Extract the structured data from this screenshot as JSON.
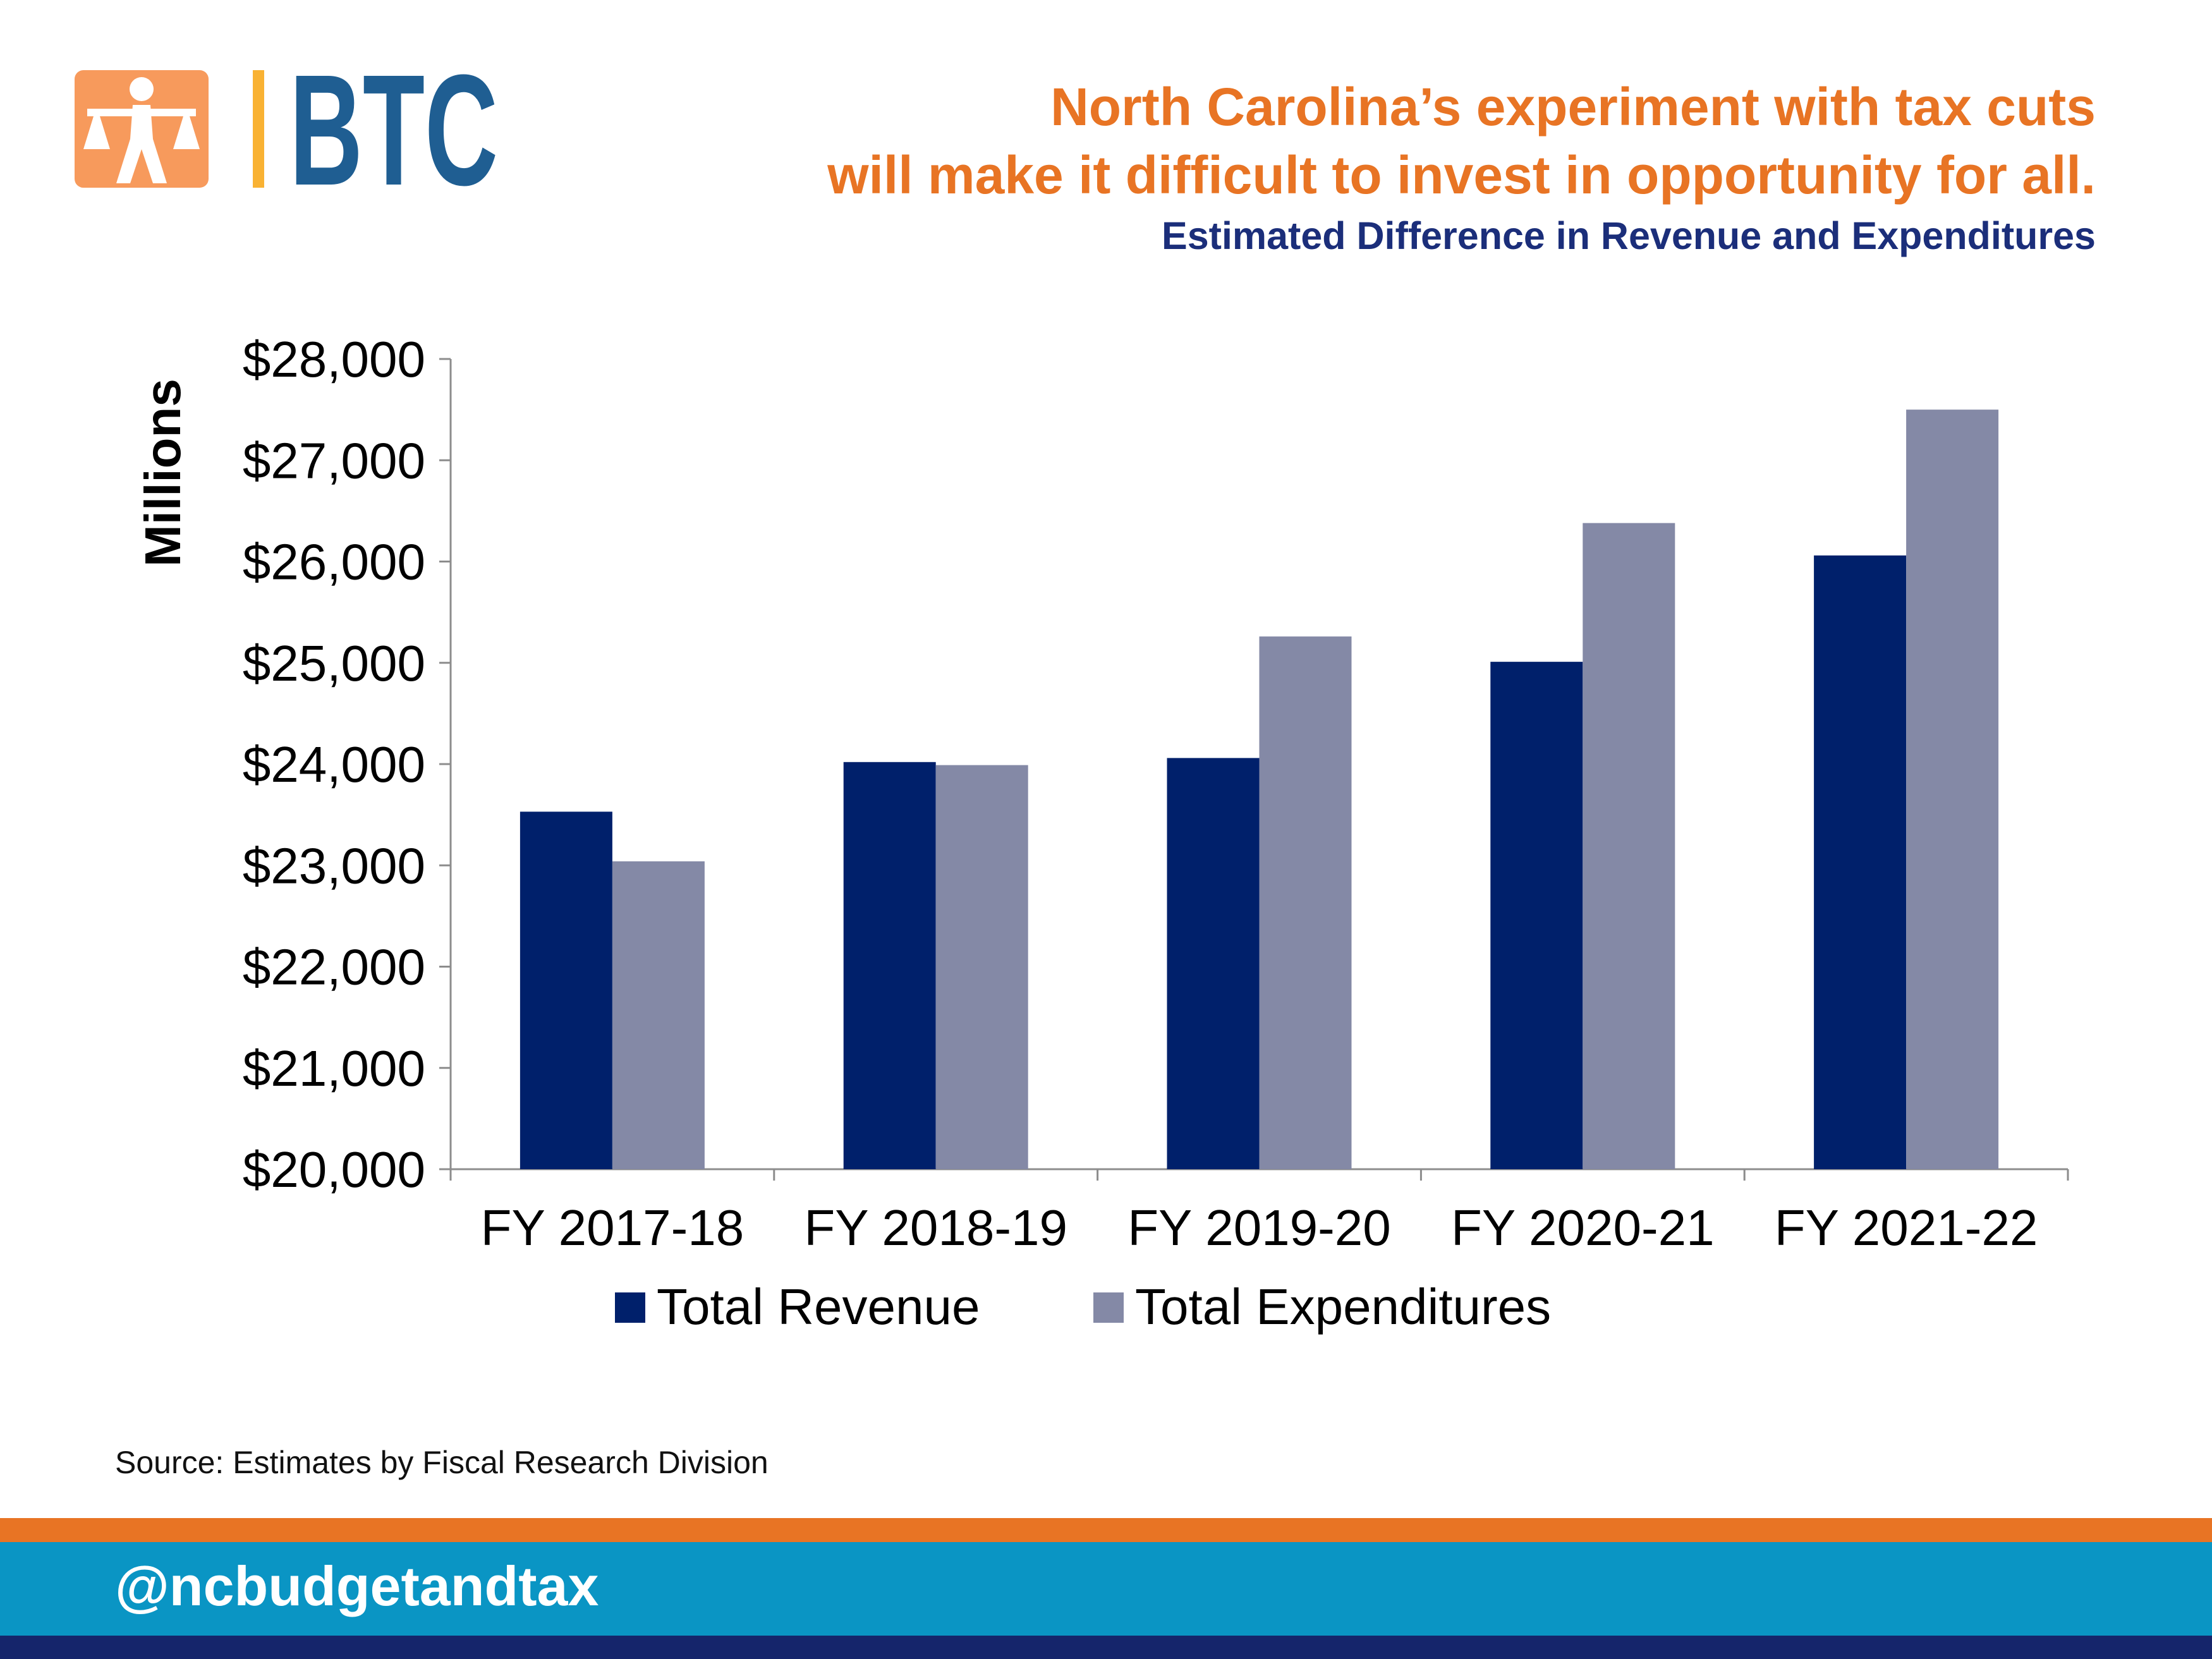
{
  "brand": {
    "logo_text": "BTC",
    "logo_colors": {
      "figure": "#f79a5c",
      "divider": "#f9b233",
      "letters": "#1f5e92"
    }
  },
  "header": {
    "title_lines": [
      "North Carolina’s experiment with tax cuts",
      "will make it difficult to invest in opportunity for all."
    ],
    "subtitle": "Estimated Difference in Revenue and Expenditures"
  },
  "chart_data": {
    "type": "bar",
    "categories": [
      "FY 2017-18",
      "FY 2018-19",
      "FY 2019-20",
      "FY 2020-21",
      "FY 2021-22"
    ],
    "series": [
      {
        "name": "Total Revenue",
        "values": [
          23530,
          24020,
          24060,
          25010,
          26060
        ],
        "color": "#00206b"
      },
      {
        "name": "Total Expenditures",
        "values": [
          23040,
          23990,
          25260,
          26380,
          27500
        ],
        "color": "#8489a6"
      }
    ],
    "ylabel": "Millions",
    "ylim": [
      20000,
      28000
    ],
    "yticks": [
      20000,
      21000,
      22000,
      23000,
      24000,
      25000,
      26000,
      27000,
      28000
    ],
    "ytick_labels": [
      "$20,000",
      "$21,000",
      "$22,000",
      "$23,000",
      "$24,000",
      "$25,000",
      "$26,000",
      "$27,000",
      "$28,000"
    ],
    "grid": false,
    "legend_position": "bottom"
  },
  "footer": {
    "source": "Source: Estimates by Fiscal Research Division",
    "handle": "@ncbudgetandtax",
    "colors": {
      "orange": "#e87424",
      "blue": "#0a95c4",
      "navy": "#15256b"
    }
  }
}
